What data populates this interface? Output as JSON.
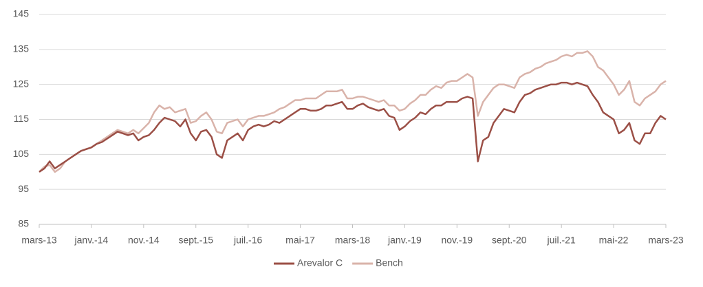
{
  "chart_data": {
    "type": "line",
    "categories": [
      "mars-13",
      null,
      null,
      null,
      null,
      null,
      null,
      null,
      null,
      null,
      "janv.-14",
      null,
      null,
      null,
      null,
      null,
      null,
      null,
      null,
      null,
      "nov.-14",
      null,
      null,
      null,
      null,
      null,
      null,
      null,
      null,
      null,
      "sept.-15",
      null,
      null,
      null,
      null,
      null,
      null,
      null,
      null,
      null,
      "juil.-16",
      null,
      null,
      null,
      null,
      null,
      null,
      null,
      null,
      null,
      "mai-17",
      null,
      null,
      null,
      null,
      null,
      null,
      null,
      null,
      null,
      "mars-18",
      null,
      null,
      null,
      null,
      null,
      null,
      null,
      null,
      null,
      "janv.-19",
      null,
      null,
      null,
      null,
      null,
      null,
      null,
      null,
      null,
      "nov.-19",
      null,
      null,
      null,
      null,
      null,
      null,
      null,
      null,
      null,
      "sept.-20",
      null,
      null,
      null,
      null,
      null,
      null,
      null,
      null,
      null,
      "juil.-21",
      null,
      null,
      null,
      null,
      null,
      null,
      null,
      null,
      null,
      "mai-22",
      null,
      null,
      null,
      null,
      null,
      null,
      null,
      null,
      null,
      "mars-23"
    ],
    "series": [
      {
        "name": "Arevalor C",
        "color": "#9b4f46",
        "values": [
          100,
          101,
          103,
          101,
          102,
          103,
          104,
          105,
          106,
          106.5,
          107,
          108,
          108.5,
          109.5,
          110.5,
          111.5,
          111,
          110.5,
          111,
          109,
          110,
          110.5,
          112,
          114,
          115.5,
          115,
          114.5,
          113,
          115,
          111,
          109,
          111.5,
          112,
          110,
          105,
          104,
          109,
          110,
          111,
          109,
          112,
          113,
          113.5,
          113,
          113.5,
          114.5,
          114,
          115,
          116,
          117,
          118,
          118,
          117.5,
          117.5,
          118,
          119,
          119,
          119.5,
          120,
          118,
          118,
          119,
          119.5,
          118.5,
          118,
          117.5,
          118,
          116,
          115.5,
          112,
          113,
          114.5,
          115.5,
          117,
          116.5,
          118,
          119,
          119,
          120,
          120,
          120,
          121,
          121.5,
          121,
          103,
          109,
          110,
          114,
          116,
          118,
          117.5,
          117,
          120,
          122,
          122.5,
          123.5,
          124,
          124.5,
          125,
          125,
          125.5,
          125.5,
          125,
          125.5,
          125,
          124.5,
          122,
          120,
          117,
          116,
          115,
          111,
          112,
          114,
          109,
          108,
          111,
          111,
          114,
          116,
          115
        ]
      },
      {
        "name": "Bench",
        "color": "#d9b3aa",
        "values": [
          100,
          101.5,
          102,
          100,
          101,
          103,
          104,
          105,
          106,
          106.5,
          107,
          108,
          109,
          110,
          111,
          112,
          111.5,
          111,
          112,
          111,
          112.5,
          114,
          117,
          119,
          118,
          118.5,
          117,
          117.5,
          118,
          114,
          114.5,
          116,
          117,
          115,
          111.5,
          111,
          114,
          114.5,
          115,
          113,
          115,
          115.5,
          116,
          116,
          116.5,
          117,
          118,
          118.5,
          119.5,
          120.5,
          120.5,
          121,
          121,
          121,
          122,
          123,
          123,
          123,
          123.5,
          121,
          121,
          121.5,
          121.5,
          121,
          120.5,
          120,
          120.5,
          119,
          119,
          117.5,
          118,
          119.5,
          120.5,
          122,
          122,
          123.5,
          124.5,
          124,
          125.5,
          126,
          126,
          127,
          128,
          127,
          116,
          120,
          122,
          124,
          125,
          125,
          124.5,
          124,
          127,
          128,
          128.5,
          129.5,
          130,
          131,
          131.5,
          132,
          133,
          133.5,
          133,
          134,
          134,
          134.5,
          133,
          130,
          129,
          127,
          125,
          122,
          123.5,
          126,
          120,
          119,
          121,
          122,
          123,
          125,
          126
        ]
      }
    ],
    "ylim": [
      85,
      145
    ],
    "yticks": [
      85,
      95,
      105,
      115,
      125,
      135,
      145
    ],
    "grid": true,
    "legend": "bottom"
  }
}
